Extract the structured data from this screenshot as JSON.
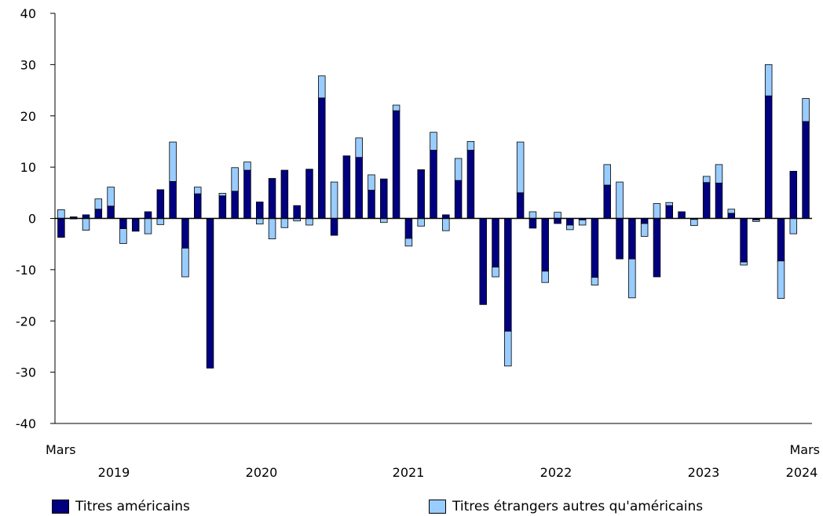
{
  "colors": {
    "us": "#000080",
    "other": "#99CCFF",
    "axis": "#000000"
  },
  "legend": {
    "us_label": "Titres américains",
    "other_label": "Titres étrangers autres qu'américains"
  },
  "chart_data": {
    "type": "bar",
    "stacked": true,
    "ylim": [
      -40,
      40
    ],
    "yticks": [
      "40",
      "30",
      "20",
      "10",
      "0",
      "-10",
      "-20",
      "-30",
      "-40"
    ],
    "x_start_label": "Mars",
    "x_end_label": "Mars",
    "year_labels": [
      "2019",
      "2020",
      "2021",
      "2022",
      "2023",
      "2024"
    ],
    "categories": [
      "2019-03",
      "2019-04",
      "2019-05",
      "2019-06",
      "2019-07",
      "2019-08",
      "2019-09",
      "2019-10",
      "2019-11",
      "2019-12",
      "2020-01",
      "2020-02",
      "2020-03",
      "2020-04",
      "2020-05",
      "2020-06",
      "2020-07",
      "2020-08",
      "2020-09",
      "2020-10",
      "2020-11",
      "2020-12",
      "2021-01",
      "2021-02",
      "2021-03",
      "2021-04",
      "2021-05",
      "2021-06",
      "2021-07",
      "2021-08",
      "2021-09",
      "2021-10",
      "2021-11",
      "2021-12",
      "2022-01",
      "2022-02",
      "2022-03",
      "2022-04",
      "2022-05",
      "2022-06",
      "2022-07",
      "2022-08",
      "2022-09",
      "2022-10",
      "2022-11",
      "2022-12",
      "2023-01",
      "2023-02",
      "2023-03",
      "2023-04",
      "2023-05",
      "2023-06",
      "2023-07",
      "2023-08",
      "2023-09",
      "2023-10",
      "2023-11",
      "2023-12",
      "2024-01",
      "2024-02",
      "2024-03"
    ],
    "series": [
      {
        "name": "Titres américains",
        "values": [
          -3.7,
          0.3,
          0.7,
          1.8,
          2.4,
          -2.0,
          -2.5,
          1.3,
          5.6,
          7.2,
          -5.8,
          4.8,
          -29.2,
          4.4,
          5.3,
          9.4,
          3.2,
          7.8,
          9.4,
          2.5,
          9.6,
          23.5,
          -3.3,
          12.2,
          11.9,
          5.5,
          7.7,
          21.0,
          -3.9,
          9.5,
          13.3,
          0.7,
          7.4,
          13.3,
          -16.8,
          -9.5,
          -22.0,
          5.0,
          -1.9,
          -10.3,
          -1.0,
          -1.3,
          -0.3,
          -11.5,
          6.5,
          -7.9,
          -7.9,
          -1.0,
          -11.4,
          2.5,
          1.3,
          -0.2,
          7.0,
          6.9,
          1.0,
          -8.5,
          -0.3,
          23.9,
          -8.3,
          9.2,
          18.9
        ]
      },
      {
        "name": "Titres étrangers autres qu'américains",
        "values": [
          1.7,
          -0.1,
          -2.3,
          2.0,
          3.7,
          -2.9,
          0.0,
          -3.0,
          -1.2,
          7.7,
          -5.6,
          1.3,
          0.0,
          0.5,
          4.6,
          1.6,
          -1.1,
          -4.0,
          -1.8,
          -0.5,
          -1.3,
          4.3,
          7.1,
          0.0,
          3.8,
          3.0,
          -0.8,
          1.1,
          -1.5,
          -1.5,
          3.5,
          -2.4,
          4.3,
          1.7,
          0.0,
          -1.9,
          -6.8,
          9.9,
          1.3,
          -2.2,
          1.2,
          -0.9,
          -1.0,
          -1.5,
          4.0,
          7.1,
          -7.6,
          -2.5,
          2.9,
          0.6,
          0.0,
          -1.2,
          1.2,
          3.6,
          0.8,
          -0.6,
          -0.3,
          6.1,
          -7.3,
          -3.0,
          4.5
        ]
      }
    ]
  }
}
